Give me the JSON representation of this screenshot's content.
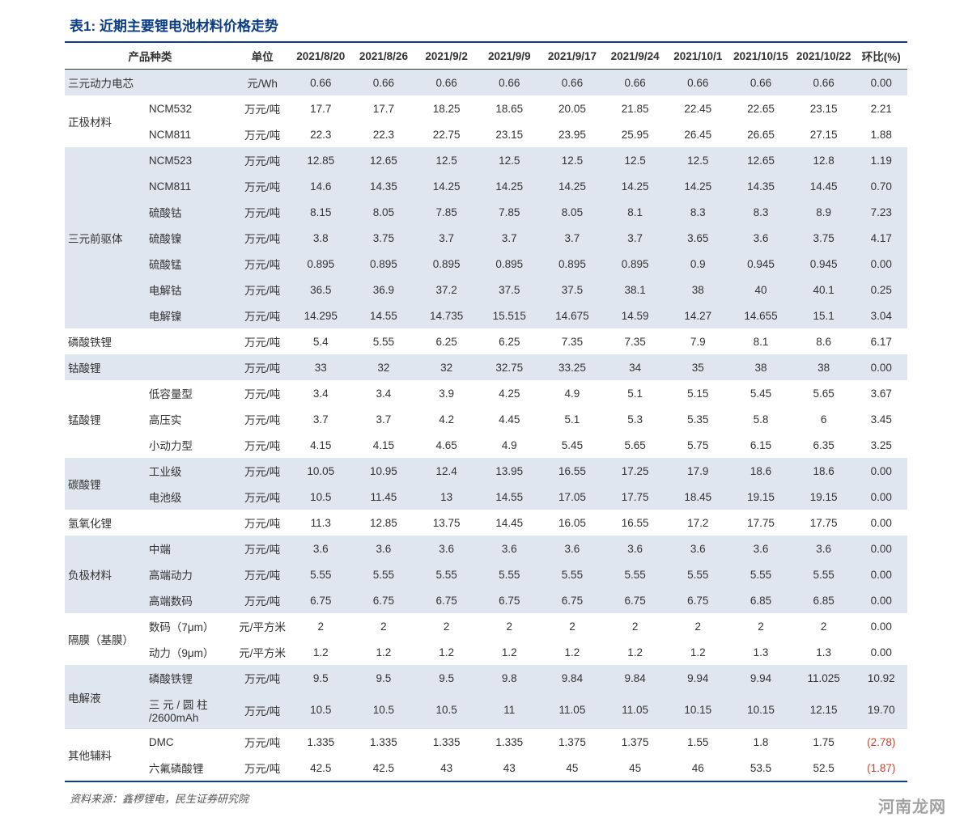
{
  "title": "表1: 近期主要锂电池材料价格走势",
  "source": "资料来源：鑫椤锂电，民生证券研究院",
  "watermark": "河南龙网",
  "colors": {
    "border": "#0a3d8a",
    "band": "#dfe6f0",
    "neg": "#d04030"
  },
  "header": {
    "cat": "产品种类",
    "unit": "单位",
    "dates": [
      "2021/8/20",
      "2021/8/26",
      "2021/9/2",
      "2021/9/9",
      "2021/9/17",
      "2021/9/24",
      "2021/10/1",
      "2021/10/15",
      "2021/10/22"
    ],
    "wow": "环比(%)"
  },
  "groups": [
    {
      "cat": "三元动力电芯",
      "band": true,
      "rows": [
        {
          "sub": "",
          "unit": "元/Wh",
          "v": [
            "0.66",
            "0.66",
            "0.66",
            "0.66",
            "0.66",
            "0.66",
            "0.66",
            "0.66",
            "0.66"
          ],
          "wow": "0.00"
        }
      ]
    },
    {
      "cat": "正极材料",
      "band": false,
      "rows": [
        {
          "sub": "NCM532",
          "unit": "万元/吨",
          "v": [
            "17.7",
            "17.7",
            "18.25",
            "18.65",
            "20.05",
            "21.85",
            "22.45",
            "22.65",
            "23.15"
          ],
          "wow": "2.21"
        },
        {
          "sub": "NCM811",
          "unit": "万元/吨",
          "v": [
            "22.3",
            "22.3",
            "22.75",
            "23.15",
            "23.95",
            "25.95",
            "26.45",
            "26.65",
            "27.15"
          ],
          "wow": "1.88"
        }
      ]
    },
    {
      "cat": "三元前驱体",
      "band": true,
      "rows": [
        {
          "sub": "NCM523",
          "unit": "万元/吨",
          "v": [
            "12.85",
            "12.65",
            "12.5",
            "12.5",
            "12.5",
            "12.5",
            "12.5",
            "12.65",
            "12.8"
          ],
          "wow": "1.19"
        },
        {
          "sub": "NCM811",
          "unit": "万元/吨",
          "v": [
            "14.6",
            "14.35",
            "14.25",
            "14.25",
            "14.25",
            "14.25",
            "14.25",
            "14.35",
            "14.45"
          ],
          "wow": "0.70"
        },
        {
          "sub": "硫酸钴",
          "unit": "万元/吨",
          "v": [
            "8.15",
            "8.05",
            "7.85",
            "7.85",
            "8.05",
            "8.1",
            "8.3",
            "8.3",
            "8.9"
          ],
          "wow": "7.23"
        },
        {
          "sub": "硫酸镍",
          "unit": "万元/吨",
          "v": [
            "3.8",
            "3.75",
            "3.7",
            "3.7",
            "3.7",
            "3.7",
            "3.65",
            "3.6",
            "3.75"
          ],
          "wow": "4.17"
        },
        {
          "sub": "硫酸锰",
          "unit": "万元/吨",
          "v": [
            "0.895",
            "0.895",
            "0.895",
            "0.895",
            "0.895",
            "0.895",
            "0.9",
            "0.945",
            "0.945"
          ],
          "wow": "0.00"
        },
        {
          "sub": "电解钴",
          "unit": "万元/吨",
          "v": [
            "36.5",
            "36.9",
            "37.2",
            "37.5",
            "37.5",
            "38.1",
            "38",
            "40",
            "40.1"
          ],
          "wow": "0.25"
        },
        {
          "sub": "电解镍",
          "unit": "万元/吨",
          "v": [
            "14.295",
            "14.55",
            "14.735",
            "15.515",
            "14.675",
            "14.59",
            "14.27",
            "14.655",
            "15.1"
          ],
          "wow": "3.04"
        }
      ]
    },
    {
      "cat": "磷酸铁锂",
      "band": false,
      "rows": [
        {
          "sub": "",
          "unit": "万元/吨",
          "v": [
            "5.4",
            "5.55",
            "6.25",
            "6.25",
            "7.35",
            "7.35",
            "7.9",
            "8.1",
            "8.6"
          ],
          "wow": "6.17"
        }
      ]
    },
    {
      "cat": "钴酸锂",
      "band": true,
      "rows": [
        {
          "sub": "",
          "unit": "万元/吨",
          "v": [
            "33",
            "32",
            "32",
            "32.75",
            "33.25",
            "34",
            "35",
            "38",
            "38"
          ],
          "wow": "0.00"
        }
      ]
    },
    {
      "cat": "锰酸锂",
      "band": false,
      "rows": [
        {
          "sub": "低容量型",
          "unit": "万元/吨",
          "v": [
            "3.4",
            "3.4",
            "3.9",
            "4.25",
            "4.9",
            "5.1",
            "5.15",
            "5.45",
            "5.65"
          ],
          "wow": "3.67"
        },
        {
          "sub": "高压实",
          "unit": "万元/吨",
          "v": [
            "3.7",
            "3.7",
            "4.2",
            "4.45",
            "5.1",
            "5.3",
            "5.35",
            "5.8",
            "6"
          ],
          "wow": "3.45"
        },
        {
          "sub": "小动力型",
          "unit": "万元/吨",
          "v": [
            "4.15",
            "4.15",
            "4.65",
            "4.9",
            "5.45",
            "5.65",
            "5.75",
            "6.15",
            "6.35"
          ],
          "wow": "3.25"
        }
      ]
    },
    {
      "cat": "碳酸锂",
      "band": true,
      "rows": [
        {
          "sub": "工业级",
          "unit": "万元/吨",
          "v": [
            "10.05",
            "10.95",
            "12.4",
            "13.95",
            "16.55",
            "17.25",
            "17.9",
            "18.6",
            "18.6"
          ],
          "wow": "0.00"
        },
        {
          "sub": "电池级",
          "unit": "万元/吨",
          "v": [
            "10.5",
            "11.45",
            "13",
            "14.55",
            "17.05",
            "17.75",
            "18.45",
            "19.15",
            "19.15"
          ],
          "wow": "0.00"
        }
      ]
    },
    {
      "cat": "氢氧化锂",
      "band": false,
      "rows": [
        {
          "sub": "",
          "unit": "万元/吨",
          "v": [
            "11.3",
            "12.85",
            "13.75",
            "14.45",
            "16.05",
            "16.55",
            "17.2",
            "17.75",
            "17.75"
          ],
          "wow": "0.00"
        }
      ]
    },
    {
      "cat": "负极材料",
      "band": true,
      "rows": [
        {
          "sub": "中端",
          "unit": "万元/吨",
          "v": [
            "3.6",
            "3.6",
            "3.6",
            "3.6",
            "3.6",
            "3.6",
            "3.6",
            "3.6",
            "3.6"
          ],
          "wow": "0.00"
        },
        {
          "sub": "高端动力",
          "unit": "万元/吨",
          "v": [
            "5.55",
            "5.55",
            "5.55",
            "5.55",
            "5.55",
            "5.55",
            "5.55",
            "5.55",
            "5.55"
          ],
          "wow": "0.00"
        },
        {
          "sub": "高端数码",
          "unit": "万元/吨",
          "v": [
            "6.75",
            "6.75",
            "6.75",
            "6.75",
            "6.75",
            "6.75",
            "6.75",
            "6.85",
            "6.85"
          ],
          "wow": "0.00"
        }
      ]
    },
    {
      "cat": "隔膜（基膜）",
      "band": false,
      "rows": [
        {
          "sub": "数码（7μm）",
          "unit": "元/平方米",
          "v": [
            "2",
            "2",
            "2",
            "2",
            "2",
            "2",
            "2",
            "2",
            "2"
          ],
          "wow": "0.00"
        },
        {
          "sub": "动力（9μm）",
          "unit": "元/平方米",
          "v": [
            "1.2",
            "1.2",
            "1.2",
            "1.2",
            "1.2",
            "1.2",
            "1.2",
            "1.3",
            "1.3"
          ],
          "wow": "0.00"
        }
      ]
    },
    {
      "cat": "电解液",
      "band": true,
      "rows": [
        {
          "sub": "磷酸铁锂",
          "unit": "万元/吨",
          "v": [
            "9.5",
            "9.5",
            "9.5",
            "9.8",
            "9.84",
            "9.84",
            "9.94",
            "9.94",
            "11.025"
          ],
          "wow": "10.92"
        },
        {
          "sub": "三 元 / 圆 柱 /2600mAh",
          "unit": "万元/吨",
          "v": [
            "10.5",
            "10.5",
            "10.5",
            "11",
            "11.05",
            "11.05",
            "10.15",
            "10.15",
            "12.15"
          ],
          "wow": "19.70"
        }
      ]
    },
    {
      "cat": "其他辅料",
      "band": false,
      "rows": [
        {
          "sub": "DMC",
          "unit": "万元/吨",
          "v": [
            "1.335",
            "1.335",
            "1.335",
            "1.335",
            "1.375",
            "1.375",
            "1.55",
            "1.8",
            "1.75"
          ],
          "wow": "(2.78)",
          "neg": true
        },
        {
          "sub": "六氟磷酸锂",
          "unit": "万元/吨",
          "v": [
            "42.5",
            "42.5",
            "43",
            "43",
            "45",
            "45",
            "46",
            "53.5",
            "52.5"
          ],
          "wow": "(1.87)",
          "neg": true
        }
      ]
    }
  ]
}
